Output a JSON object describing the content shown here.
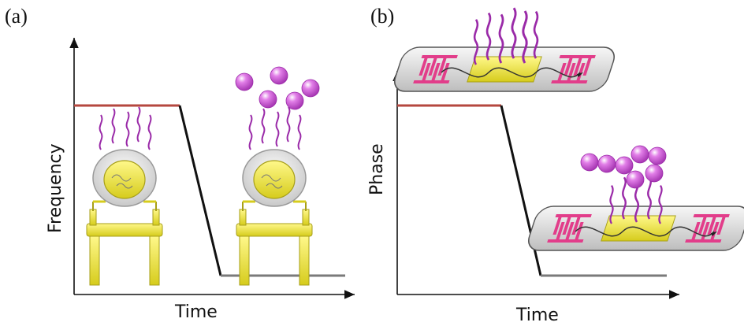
{
  "panels": [
    {
      "label": "(a)",
      "xlabel": "Time",
      "ylabel": "Frequency"
    },
    {
      "label": "(b)",
      "xlabel": "Time",
      "ylabel": "Phase"
    }
  ],
  "colors": {
    "axis": "#111111",
    "signal_high": "#b5473f",
    "signal_drop": "#111111",
    "signal_low": "#7a7a7a",
    "gold": "#e8e03a",
    "gold_dark": "#b7ae1e",
    "linker": "#9a2aa8",
    "ball": "#d061d8",
    "electrode": "#e23d8a",
    "chip_base": "#dcdcdc"
  },
  "icons": [
    "qcm-sensor-icon",
    "saw-sensor-icon",
    "ligand-icon",
    "bound-particle-icon"
  ]
}
